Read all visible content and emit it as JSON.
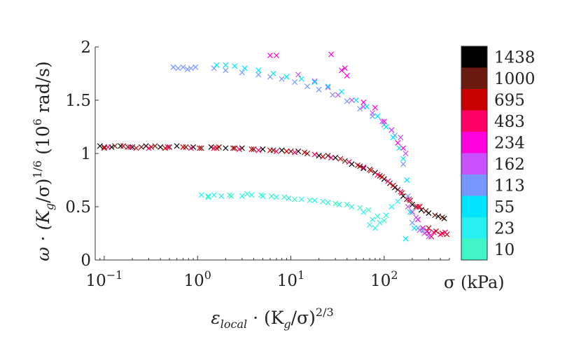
{
  "chart_data": {
    "type": "scatter",
    "x_scale": "log",
    "xlim": [
      0.08,
      500
    ],
    "ylim": [
      0,
      2
    ],
    "marker": "x",
    "xlabel": "εlocal · (Kg/σ)^2/3",
    "xlabel_parts": {
      "symbol": "ε",
      "sub": "local",
      "mid": " · (K",
      "sub2": "g",
      "tail": "/σ)",
      "sup": "2/3"
    },
    "ylabel": "ω · (Kg/σ)^1/6 (10^6 rad/s)",
    "ylabel_parts": {
      "a": "ω · (K",
      "sub": "g",
      "b": "/σ)",
      "sup": "1/6",
      "c": " (10",
      "sup2": "6",
      "d": " rad/s)"
    },
    "x_ticks": [
      {
        "value": 0.1,
        "base": "10",
        "exp": "−1"
      },
      {
        "value": 1,
        "base": "10",
        "exp": "0"
      },
      {
        "value": 10,
        "base": "10",
        "exp": "1"
      },
      {
        "value": 100,
        "base": "10",
        "exp": "2"
      }
    ],
    "y_ticks": [
      {
        "value": 0,
        "label": "0"
      },
      {
        "value": 0.5,
        "label": "0.5"
      },
      {
        "value": 1,
        "label": "1"
      },
      {
        "value": 1.5,
        "label": "1.5"
      },
      {
        "value": 2,
        "label": "2"
      }
    ],
    "colorbar": {
      "title": "σ (kPa)",
      "levels": [
        {
          "label": "1438",
          "color": "#000000"
        },
        {
          "label": "1000",
          "color": "#6b1a10"
        },
        {
          "label": "695",
          "color": "#c80000"
        },
        {
          "label": "483",
          "color": "#ff0066"
        },
        {
          "label": "234",
          "color": "#ff00dd"
        },
        {
          "label": "162",
          "color": "#c850ff"
        },
        {
          "label": "113",
          "color": "#7896ff"
        },
        {
          "label": "55",
          "color": "#00e5ff"
        },
        {
          "label": "23",
          "color": "#29f0f0"
        },
        {
          "label": "10",
          "color": "#3ff5c8"
        }
      ]
    },
    "series": [
      {
        "name": "1438 kPa",
        "color": "#000000",
        "points": [
          [
            0.09,
            1.07
          ],
          [
            0.12,
            1.06
          ],
          [
            0.15,
            1.07
          ],
          [
            0.2,
            1.06
          ],
          [
            0.28,
            1.07
          ],
          [
            0.4,
            1.06
          ],
          [
            0.6,
            1.07
          ],
          [
            0.9,
            1.06
          ],
          [
            1.4,
            1.06
          ],
          [
            2.0,
            1.05
          ],
          [
            3.0,
            1.05
          ],
          [
            5.0,
            1.04
          ],
          [
            8.0,
            1.03
          ],
          [
            12,
            1.02
          ],
          [
            20,
            0.98
          ],
          [
            30,
            0.96
          ],
          [
            45,
            0.9
          ],
          [
            60,
            0.86
          ],
          [
            80,
            0.82
          ],
          [
            100,
            0.76
          ],
          [
            130,
            0.68
          ],
          [
            160,
            0.6
          ],
          [
            200,
            0.52
          ],
          [
            250,
            0.47
          ],
          [
            300,
            0.44
          ],
          [
            380,
            0.41
          ],
          [
            440,
            0.39
          ]
        ]
      },
      {
        "name": "1000 kPa",
        "color": "#6b1a10",
        "points": [
          [
            0.1,
            1.06
          ],
          [
            0.13,
            1.07
          ],
          [
            0.18,
            1.06
          ],
          [
            0.25,
            1.06
          ],
          [
            0.35,
            1.07
          ],
          [
            0.5,
            1.06
          ],
          [
            0.75,
            1.06
          ],
          [
            1.1,
            1.05
          ],
          [
            1.7,
            1.06
          ],
          [
            2.5,
            1.05
          ],
          [
            4.0,
            1.04
          ],
          [
            6.5,
            1.03
          ],
          [
            10,
            1.02
          ],
          [
            15,
            1.0
          ],
          [
            25,
            0.98
          ],
          [
            38,
            0.93
          ],
          [
            55,
            0.88
          ],
          [
            70,
            0.85
          ],
          [
            90,
            0.79
          ],
          [
            115,
            0.72
          ],
          [
            140,
            0.66
          ],
          [
            175,
            0.57
          ],
          [
            220,
            0.5
          ],
          [
            280,
            0.46
          ],
          [
            350,
            0.42
          ],
          [
            420,
            0.4
          ]
        ]
      },
      {
        "name": "695 kPa",
        "color": "#c80000",
        "points": [
          [
            0.1,
            1.05
          ],
          [
            0.16,
            1.07
          ],
          [
            0.22,
            1.05
          ],
          [
            0.32,
            1.06
          ],
          [
            0.45,
            1.05
          ],
          [
            0.7,
            1.06
          ],
          [
            1.05,
            1.05
          ],
          [
            1.6,
            1.05
          ],
          [
            2.4,
            1.05
          ],
          [
            3.8,
            1.04
          ],
          [
            6,
            1.03
          ],
          [
            9,
            1.02
          ],
          [
            14,
            1.01
          ],
          [
            22,
            0.97
          ],
          [
            34,
            0.95
          ],
          [
            52,
            0.89
          ],
          [
            72,
            0.84
          ],
          [
            95,
            0.78
          ],
          [
            125,
            0.7
          ],
          [
            155,
            0.63
          ],
          [
            190,
            0.56
          ],
          [
            240,
            0.5
          ],
          [
            300,
            0.3
          ],
          [
            360,
            0.27
          ],
          [
            420,
            0.25
          ],
          [
            470,
            0.24
          ]
        ]
      },
      {
        "name": "483 kPa",
        "color": "#ff0066",
        "points": [
          [
            0.11,
            1.06
          ],
          [
            0.19,
            1.06
          ],
          [
            0.3,
            1.05
          ],
          [
            0.48,
            1.06
          ],
          [
            0.85,
            1.05
          ],
          [
            1.5,
            1.05
          ],
          [
            2.8,
            1.04
          ],
          [
            4.5,
            1.03
          ],
          [
            7,
            1.02
          ],
          [
            11,
            1.01
          ],
          [
            18,
            0.99
          ],
          [
            27,
            0.96
          ],
          [
            42,
            0.92
          ],
          [
            60,
            0.87
          ],
          [
            85,
            0.8
          ],
          [
            110,
            0.74
          ],
          [
            150,
            0.64
          ],
          [
            185,
            0.57
          ],
          [
            230,
            0.5
          ],
          [
            290,
            0.27
          ],
          [
            340,
            0.26
          ],
          [
            400,
            0.24
          ],
          [
            450,
            0.26
          ],
          [
            320,
            0.22
          ]
        ]
      },
      {
        "name": "234 kPa",
        "color": "#ff00dd",
        "points": [
          [
            6,
            1.92
          ],
          [
            7,
            1.92
          ],
          [
            27,
            1.93
          ],
          [
            35,
            1.78
          ],
          [
            38,
            1.8
          ],
          [
            40,
            1.73
          ],
          [
            60,
            1.48
          ],
          [
            80,
            1.43
          ],
          [
            100,
            1.3
          ],
          [
            120,
            1.22
          ],
          [
            140,
            1.1
          ],
          [
            160,
            1.05
          ],
          [
            200,
            0.45
          ],
          [
            230,
            0.38
          ],
          [
            260,
            0.3
          ],
          [
            300,
            0.25
          ]
        ]
      },
      {
        "name": "162 kPa",
        "color": "#c850ff",
        "points": [
          [
            12,
            1.74
          ],
          [
            18,
            1.68
          ],
          [
            25,
            1.62
          ],
          [
            32,
            1.55
          ],
          [
            45,
            1.5
          ],
          [
            60,
            1.44
          ],
          [
            75,
            1.38
          ],
          [
            95,
            1.3
          ],
          [
            120,
            1.22
          ],
          [
            150,
            1.15
          ],
          [
            170,
            1.0
          ],
          [
            180,
            0.5
          ],
          [
            200,
            0.45
          ],
          [
            220,
            0.4
          ],
          [
            240,
            0.28
          ],
          [
            270,
            0.25
          ],
          [
            300,
            0.22
          ]
        ]
      },
      {
        "name": "113 kPa",
        "color": "#7896ff",
        "points": [
          [
            0.55,
            1.81
          ],
          [
            0.62,
            1.8
          ],
          [
            0.7,
            1.81
          ],
          [
            0.78,
            1.79
          ],
          [
            0.85,
            1.8
          ],
          [
            0.95,
            1.81
          ],
          [
            1.5,
            1.8
          ],
          [
            2,
            1.78
          ],
          [
            3,
            1.76
          ],
          [
            4.5,
            1.74
          ],
          [
            6,
            1.72
          ],
          [
            8,
            1.7
          ],
          [
            11,
            1.67
          ],
          [
            15,
            1.63
          ],
          [
            20,
            1.6
          ],
          [
            28,
            1.55
          ],
          [
            40,
            1.49
          ],
          [
            55,
            1.42
          ],
          [
            75,
            1.35
          ],
          [
            100,
            1.27
          ],
          [
            130,
            1.17
          ],
          [
            160,
            0.9
          ],
          [
            180,
            0.6
          ],
          [
            200,
            0.35
          ],
          [
            230,
            0.3
          ],
          [
            260,
            0.28
          ]
        ]
      },
      {
        "name": "55 kPa",
        "color": "#00e5ff",
        "points": [
          [
            1.6,
            1.83
          ],
          [
            2.0,
            1.83
          ],
          [
            2.5,
            1.82
          ],
          [
            3.2,
            1.8
          ],
          [
            4.5,
            1.78
          ],
          [
            6.5,
            1.75
          ],
          [
            9,
            1.72
          ],
          [
            13,
            1.7
          ],
          [
            18,
            1.67
          ],
          [
            25,
            1.63
          ],
          [
            35,
            1.58
          ],
          [
            50,
            1.5
          ],
          [
            65,
            1.44
          ],
          [
            85,
            1.35
          ],
          [
            105,
            1.25
          ],
          [
            125,
            1.15
          ],
          [
            145,
            1.05
          ],
          [
            160,
            0.95
          ],
          [
            175,
            0.75
          ],
          [
            190,
            0.45
          ],
          [
            210,
            0.3
          ],
          [
            170,
            0.2
          ]
        ]
      },
      {
        "name": "23 kPa",
        "color": "#29f0f0",
        "points": [
          [
            1.1,
            0.61
          ],
          [
            1.3,
            0.6
          ],
          [
            1.5,
            0.61
          ],
          [
            1.8,
            0.6
          ],
          [
            2.3,
            0.6
          ],
          [
            3.0,
            0.6
          ],
          [
            3.8,
            0.61
          ],
          [
            5,
            0.6
          ],
          [
            7,
            0.59
          ],
          [
            9.5,
            0.58
          ],
          [
            13,
            0.57
          ],
          [
            18,
            0.56
          ],
          [
            25,
            0.54
          ],
          [
            33,
            0.52
          ],
          [
            45,
            0.5
          ],
          [
            60,
            0.45
          ],
          [
            75,
            0.38
          ],
          [
            90,
            0.35
          ],
          [
            105,
            0.42
          ],
          [
            120,
            0.5
          ],
          [
            140,
            0.55
          ],
          [
            80,
            0.3
          ],
          [
            70,
            0.33
          ]
        ]
      },
      {
        "name": "10 kPa",
        "color": "#3ff5c8",
        "points": [
          [
            1.3,
            0.59
          ],
          [
            2.2,
            0.61
          ],
          [
            3.4,
            0.62
          ],
          [
            4.8,
            0.61
          ],
          [
            6.2,
            0.6
          ],
          [
            8.5,
            0.59
          ],
          [
            11,
            0.57
          ],
          [
            16,
            0.56
          ],
          [
            22,
            0.55
          ],
          [
            30,
            0.53
          ],
          [
            40,
            0.52
          ],
          [
            55,
            0.49
          ],
          [
            68,
            0.47
          ],
          [
            85,
            0.41
          ],
          [
            100,
            0.37
          ]
        ]
      }
    ]
  }
}
